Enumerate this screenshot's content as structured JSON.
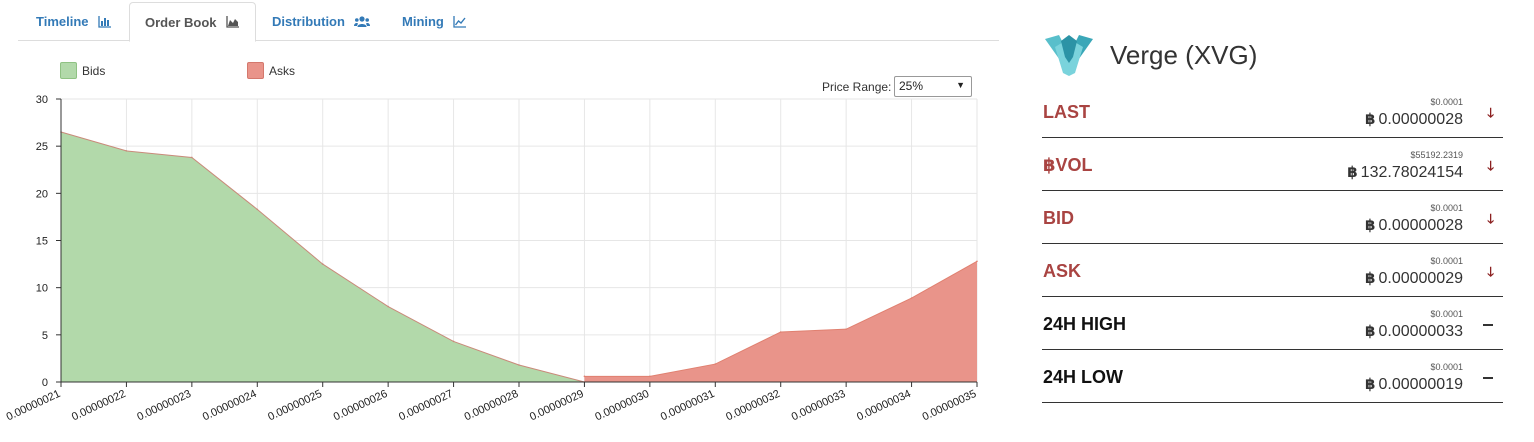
{
  "tabs": [
    {
      "label": "Timeline",
      "icon": "bar-chart-icon",
      "active": false
    },
    {
      "label": "Order Book",
      "icon": "area-chart-icon",
      "active": true
    },
    {
      "label": "Distribution",
      "icon": "users-icon",
      "active": false
    },
    {
      "label": "Mining",
      "icon": "line-chart-icon",
      "active": false
    }
  ],
  "legend": {
    "bids": {
      "label": "Bids",
      "color": "#b2d9aa"
    },
    "asks": {
      "label": "Asks",
      "color": "#e9948a"
    }
  },
  "price_range": {
    "label": "Price Range:",
    "value": "25%"
  },
  "coin": {
    "title": "Verge (XVG)",
    "logo": "verge-logo-icon"
  },
  "stats": [
    {
      "label": "LAST",
      "usd": "$0.0001",
      "btc": "0.00000028",
      "trend": "down",
      "color": "red"
    },
    {
      "label": "฿VOL",
      "usd": "$55192.2319",
      "btc": "132.78024154",
      "trend": "down",
      "color": "red"
    },
    {
      "label": "BID",
      "usd": "$0.0001",
      "btc": "0.00000028",
      "trend": "down",
      "color": "red"
    },
    {
      "label": "ASK",
      "usd": "$0.0001",
      "btc": "0.00000029",
      "trend": "down",
      "color": "red"
    },
    {
      "label": "24H HIGH",
      "usd": "$0.0001",
      "btc": "0.00000033",
      "trend": "flat",
      "color": "dark"
    },
    {
      "label": "24H LOW",
      "usd": "$0.0001",
      "btc": "0.00000019",
      "trend": "flat",
      "color": "dark"
    }
  ],
  "btc_symbol": "฿",
  "chart_data": {
    "type": "area",
    "x_ticks": [
      "0.00000021",
      "0.00000022",
      "0.00000023",
      "0.00000024",
      "0.00000025",
      "0.00000026",
      "0.00000027",
      "0.00000028",
      "0.00000029",
      "0.00000030",
      "0.00000031",
      "0.00000032",
      "0.00000033",
      "0.00000034",
      "0.00000035"
    ],
    "y_ticks": [
      0,
      5,
      10,
      15,
      20,
      25,
      30
    ],
    "ylim": [
      0,
      30
    ],
    "xlim": [
      2.1e-07,
      3.5e-07
    ],
    "grid": true,
    "legend_position": "top-left",
    "series": [
      {
        "name": "Bids",
        "color": "#b2d9aa",
        "x": [
          2.1e-07,
          2.2e-07,
          2.3e-07,
          2.4e-07,
          2.5e-07,
          2.6e-07,
          2.7e-07,
          2.8e-07,
          2.9e-07
        ],
        "y": [
          26.5,
          24.5,
          23.8,
          18.3,
          12.5,
          8.0,
          4.3,
          1.8,
          0
        ]
      },
      {
        "name": "Asks",
        "color": "#e9948a",
        "x": [
          2.9e-07,
          3e-07,
          3.1e-07,
          3.2e-07,
          3.3e-07,
          3.4e-07,
          3.5e-07
        ],
        "y": [
          0.6,
          0.6,
          1.9,
          5.3,
          5.6,
          8.9,
          12.8
        ]
      }
    ]
  }
}
